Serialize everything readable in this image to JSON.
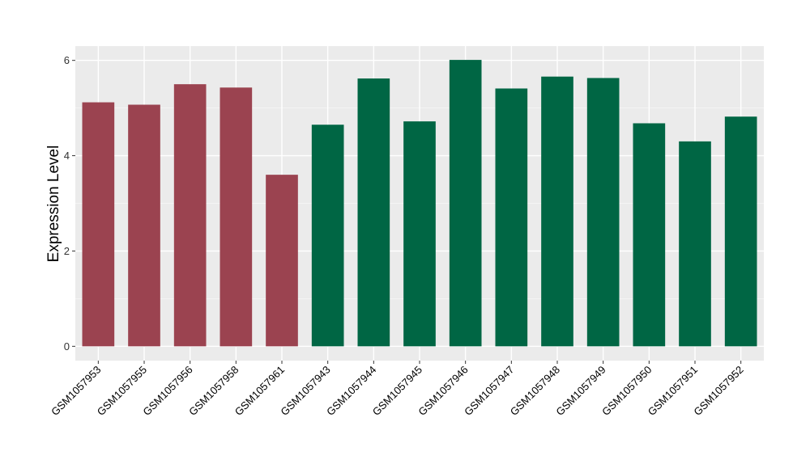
{
  "chart_data": {
    "type": "bar",
    "title": "",
    "xlabel": "",
    "ylabel": "Expression Level",
    "ylim": [
      -0.3,
      6.3
    ],
    "yticks": [
      0,
      2,
      4,
      6
    ],
    "grid": true,
    "background": "#ebebeb",
    "categories": [
      "GSM1057953",
      "GSM1057955",
      "GSM1057956",
      "GSM1057958",
      "GSM1057961",
      "GSM1057943",
      "GSM1057944",
      "GSM1057945",
      "GSM1057946",
      "GSM1057947",
      "GSM1057948",
      "GSM1057949",
      "GSM1057950",
      "GSM1057951",
      "GSM1057952"
    ],
    "values": [
      5.12,
      5.07,
      5.5,
      5.43,
      3.6,
      4.65,
      5.62,
      4.72,
      6.01,
      5.41,
      5.66,
      5.63,
      4.68,
      4.3,
      4.82
    ],
    "colors": [
      "#9b4350",
      "#9b4350",
      "#9b4350",
      "#9b4350",
      "#9b4350",
      "#006644",
      "#006644",
      "#006644",
      "#006644",
      "#006644",
      "#006644",
      "#006644",
      "#006644",
      "#006644",
      "#006644"
    ]
  }
}
